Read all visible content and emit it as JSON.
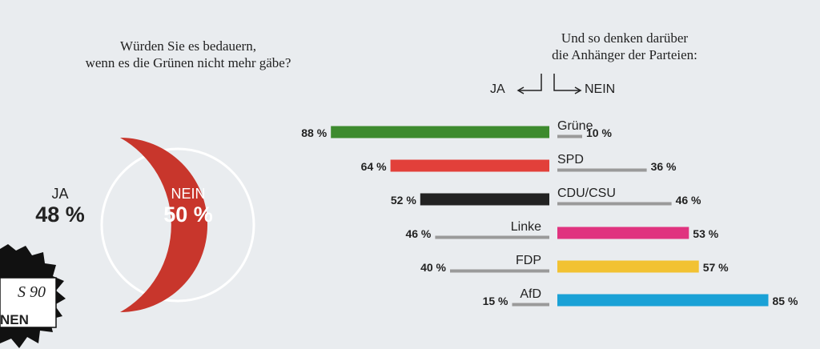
{
  "question": {
    "line1": "Würden Sie es bedauern,",
    "line2": "wenn es die Grünen nicht mehr gäbe?"
  },
  "right_title": {
    "line1": "Und so denken darüber",
    "line2": "die Anhänger der Parteien:"
  },
  "legend": {
    "ja": "JA",
    "nein": "NEIN"
  },
  "logo_text": {
    "top": "S 90",
    "bottom": "NEN"
  },
  "chart_data": [
    {
      "type": "pie",
      "title": "Würden Sie es bedauern, wenn es die Grünen nicht mehr gäbe?",
      "slices": [
        {
          "label": "JA",
          "value": 48,
          "display": "48 %",
          "color": "#e9ecef"
        },
        {
          "label": "NEIN",
          "value": 50,
          "display": "50 %",
          "color": "#c8362c"
        }
      ]
    },
    {
      "type": "bar",
      "title": "Und so denken darüber die Anhänger der Parteien:",
      "categories": [
        "Grüne",
        "SPD",
        "CDU/CSU",
        "Linke",
        "FDP",
        "AfD"
      ],
      "series": [
        {
          "name": "JA",
          "values": [
            88,
            64,
            52,
            46,
            40,
            15
          ],
          "labels": [
            "88 %",
            "64 %",
            "52 %",
            "46 %",
            "40 %",
            "15 %"
          ]
        },
        {
          "name": "NEIN",
          "values": [
            10,
            36,
            46,
            53,
            57,
            85
          ],
          "labels": [
            "10 %",
            "36 %",
            "46 %",
            "53 %",
            "57 %",
            "85 %"
          ]
        }
      ],
      "highlight": [
        "ja",
        "ja",
        "ja",
        "nein",
        "nein",
        "nein"
      ],
      "colors": [
        "#3d8b2e",
        "#e2403a",
        "#222222",
        "#e0337f",
        "#f2c232",
        "#1aa1d6"
      ],
      "grey_color": "#9a9a9a"
    }
  ]
}
